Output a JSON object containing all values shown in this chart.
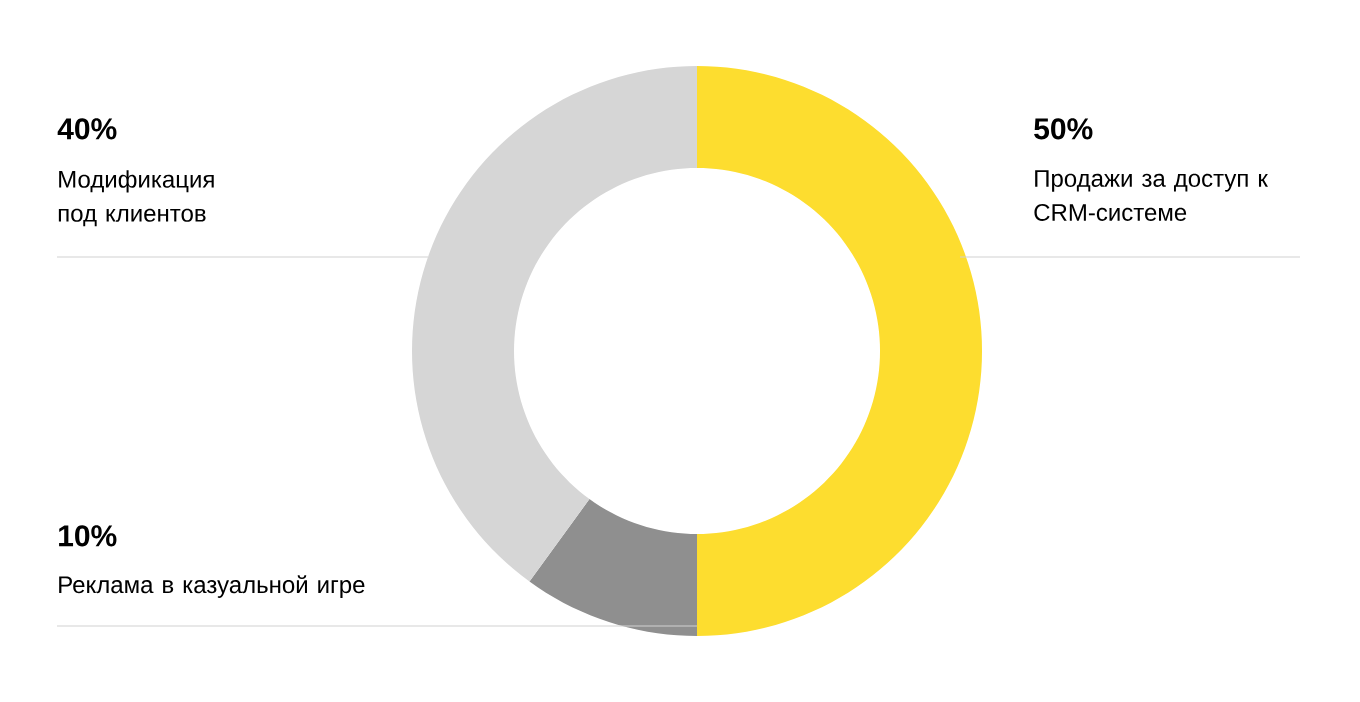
{
  "chart_data": {
    "type": "donut",
    "categories": [
      "Продажи за доступ к CRM-системе",
      "Реклама в казуальной игре",
      "Модификация под клиентов"
    ],
    "values": [
      50,
      10,
      40
    ],
    "colors": [
      "#fddd2f",
      "#8f8f8f",
      "#d6d6d6"
    ],
    "value_labels": [
      "50%",
      "10%",
      "40%"
    ]
  }
}
